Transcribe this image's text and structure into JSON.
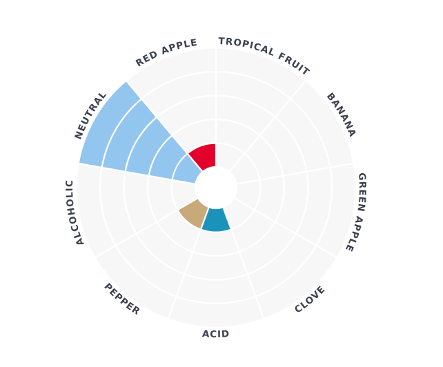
{
  "chart_data": {
    "type": "polar-area",
    "categories": [
      "TROPICAL FRUIT",
      "BANANA",
      "GREEN APPLE",
      "CLOVE",
      "ACID",
      "PEPPER",
      "ALCOHOLIC",
      "NEUTRAL",
      "RED APPLE"
    ],
    "values": [
      0,
      0,
      0,
      0,
      1,
      1,
      0,
      5,
      1
    ],
    "rlim": [
      0,
      5
    ],
    "grid": true,
    "colors": {
      "background_sector": "#f7f7f7",
      "grid_line": "#ffffff",
      "label": "#3d4150",
      "TROPICAL FRUIT": "#e3012b",
      "ACID": "#1a93bb",
      "PEPPER": "#c8a97a",
      "NEUTRAL": "#93c6ee",
      "RED APPLE": "#e3012b"
    }
  }
}
